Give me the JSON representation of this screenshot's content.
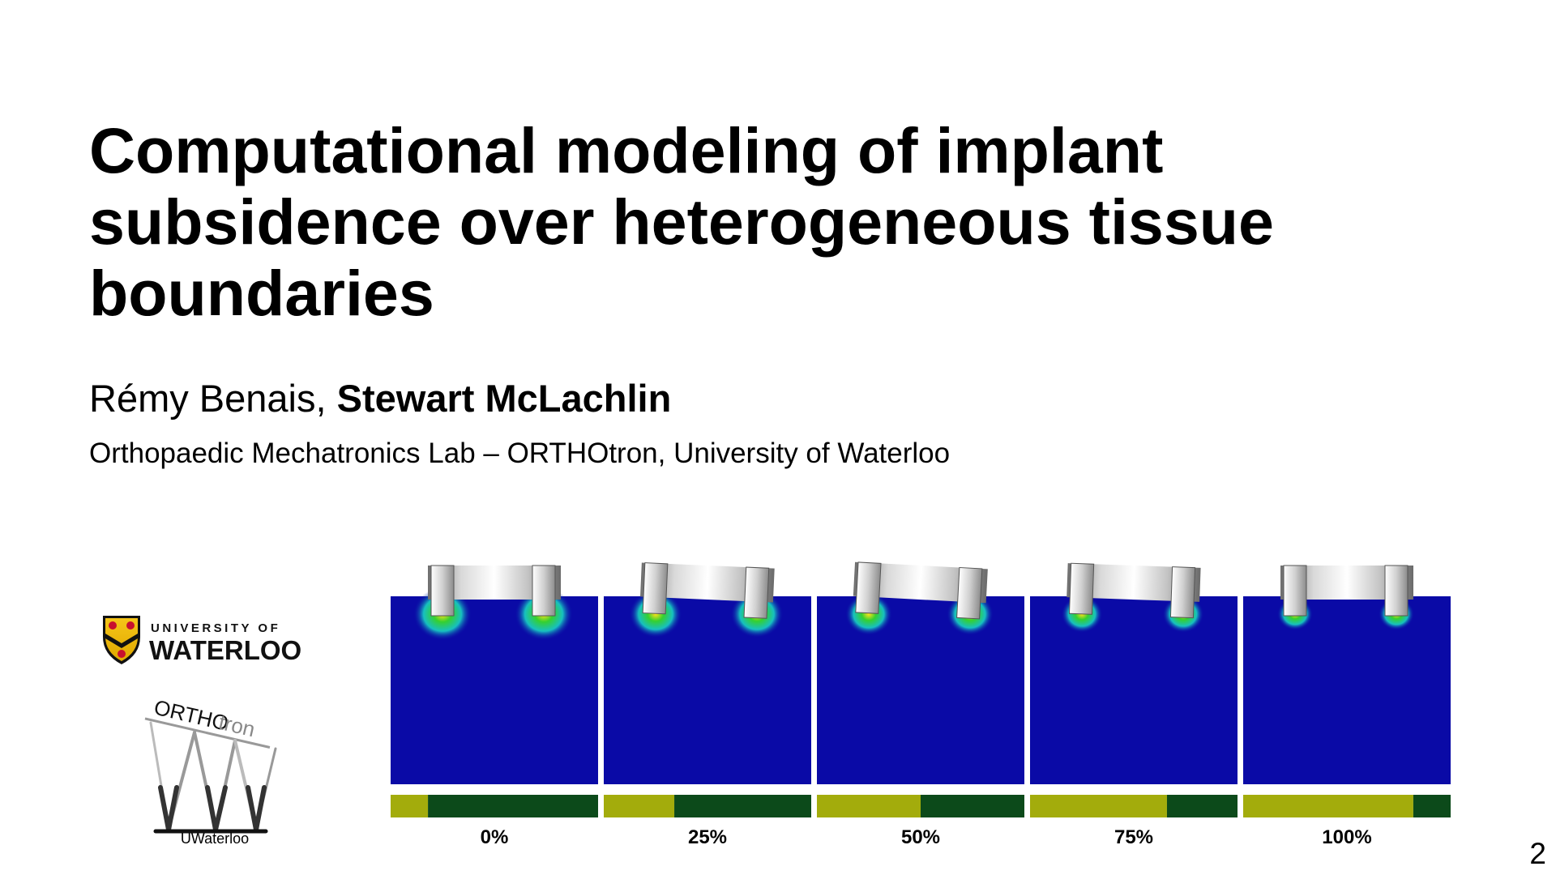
{
  "slide": {
    "title": "Computational modeling of implant subsidence over heterogeneous tissue boundaries",
    "authors": {
      "first": "Rémy Benais, ",
      "second": "Stewart McLachlin"
    },
    "affiliation": "Orthopaedic Mechatronics Lab – ORTHOtron, University of Waterloo",
    "page_number": "2"
  },
  "logos": {
    "waterloo_top": "UNIVERSITY OF",
    "waterloo_main": "WATERLOO",
    "orthotron_a": "ORTHO",
    "orthotron_b": "tron",
    "uwaterloo": "UWaterloo"
  },
  "colors": {
    "tissue_block": "#0a0aa6",
    "bar_light": "#a3ac0c",
    "bar_dark": "#0c4a1a",
    "implant": "#b8b8b8"
  },
  "simulations": [
    {
      "label": "0%",
      "fraction": 0.0
    },
    {
      "label": "25%",
      "fraction": 0.25
    },
    {
      "label": "50%",
      "fraction": 0.5
    },
    {
      "label": "75%",
      "fraction": 0.75
    },
    {
      "label": "100%",
      "fraction": 1.0
    }
  ]
}
